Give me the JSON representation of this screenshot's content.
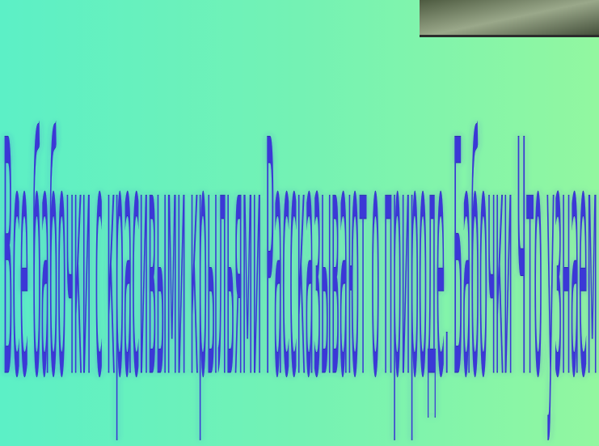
{
  "slide": {
    "text": "Все бабочки с красивыми крыльями Рассказывают о природе. Бабочки Что узнаем"
  }
}
